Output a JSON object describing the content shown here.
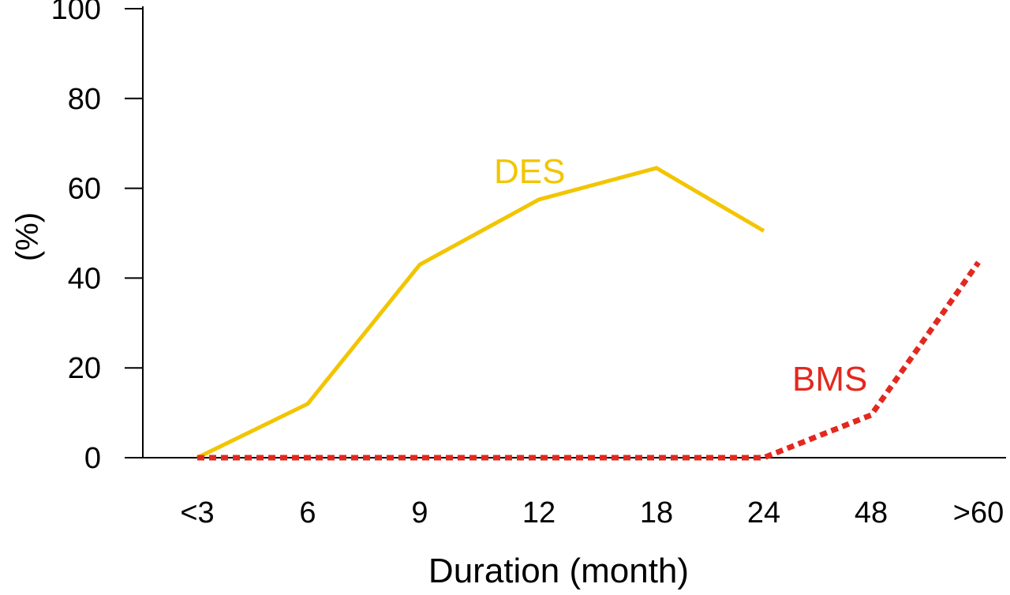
{
  "chart_data": {
    "type": "line",
    "title": "",
    "xlabel": "Duration (month)",
    "ylabel": "(%)",
    "categories": [
      "<3",
      "6",
      "9",
      "12",
      "18",
      "24",
      "48",
      ">60"
    ],
    "ylim": [
      0,
      100
    ],
    "yticks": [
      0,
      20,
      40,
      60,
      80,
      100
    ],
    "grid": false,
    "series": [
      {
        "name": "DES",
        "color": "#F2C500",
        "style": "solid",
        "values": [
          0,
          12,
          43,
          57.5,
          64.5,
          50.5,
          null,
          null
        ]
      },
      {
        "name": "BMS",
        "color": "#E3281E",
        "style": "dotted",
        "values": [
          0,
          0,
          0,
          0,
          0,
          0,
          9.5,
          43.5
        ]
      }
    ]
  }
}
